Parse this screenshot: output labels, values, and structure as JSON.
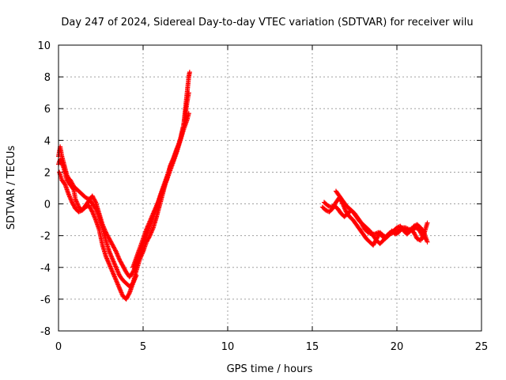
{
  "chart_data": {
    "type": "scatter",
    "title": "Day 247 of 2024, Sidereal Day-to-day VTEC variation (SDTVAR) for receiver wilu",
    "xlabel": "GPS time / hours",
    "ylabel": "SDTVAR / TECUs",
    "xlim": [
      0,
      25
    ],
    "ylim": [
      -8,
      10
    ],
    "xticks": [
      0,
      5,
      10,
      15,
      20,
      25
    ],
    "yticks": [
      -8,
      -6,
      -4,
      -2,
      0,
      2,
      4,
      6,
      8,
      10
    ],
    "grid": true,
    "marker": "+",
    "series": [
      {
        "name": "SDTVAR",
        "color": "#ff0000",
        "segments": [
          [
            [
              0.0,
              3.0
            ],
            [
              0.1,
              3.6
            ],
            [
              0.2,
              3.0
            ],
            [
              0.3,
              2.6
            ],
            [
              0.4,
              2.2
            ],
            [
              0.5,
              1.8
            ],
            [
              0.6,
              1.6
            ],
            [
              0.7,
              1.5
            ],
            [
              0.8,
              1.3
            ],
            [
              0.9,
              1.1
            ],
            [
              1.0,
              1.0
            ],
            [
              1.2,
              0.8
            ],
            [
              1.4,
              0.6
            ],
            [
              1.6,
              0.4
            ],
            [
              1.8,
              0.3
            ],
            [
              2.0,
              0.0
            ],
            [
              2.2,
              -0.3
            ],
            [
              2.4,
              -0.8
            ],
            [
              2.6,
              -1.5
            ],
            [
              2.8,
              -2.3
            ],
            [
              3.0,
              -3.0
            ],
            [
              3.2,
              -3.5
            ],
            [
              3.4,
              -4.0
            ],
            [
              3.6,
              -4.5
            ],
            [
              3.8,
              -4.8
            ],
            [
              4.0,
              -5.0
            ],
            [
              4.2,
              -5.2
            ],
            [
              4.4,
              -5.0
            ],
            [
              4.6,
              -4.5
            ]
          ],
          [
            [
              0.0,
              2.5
            ],
            [
              0.1,
              2.8
            ],
            [
              0.3,
              2.3
            ],
            [
              0.5,
              1.5
            ],
            [
              0.7,
              1.2
            ],
            [
              0.9,
              0.9
            ],
            [
              1.0,
              0.3
            ],
            [
              1.2,
              -0.2
            ],
            [
              1.4,
              -0.4
            ],
            [
              1.6,
              -0.2
            ],
            [
              1.8,
              -0.1
            ],
            [
              2.0,
              -0.5
            ],
            [
              2.2,
              -1.0
            ],
            [
              2.4,
              -1.6
            ],
            [
              2.6,
              -2.6
            ],
            [
              2.8,
              -3.3
            ],
            [
              3.0,
              -3.8
            ],
            [
              3.2,
              -4.3
            ],
            [
              3.4,
              -4.8
            ],
            [
              3.6,
              -5.3
            ],
            [
              3.8,
              -5.8
            ],
            [
              4.0,
              -6.0
            ],
            [
              4.2,
              -5.6
            ],
            [
              4.4,
              -5.0
            ],
            [
              4.6,
              -4.2
            ],
            [
              4.8,
              -3.5
            ],
            [
              5.0,
              -3.0
            ],
            [
              5.2,
              -2.4
            ],
            [
              5.4,
              -2.0
            ],
            [
              5.6,
              -1.5
            ],
            [
              5.8,
              -0.8
            ],
            [
              6.0,
              0.0
            ],
            [
              6.2,
              0.8
            ],
            [
              6.4,
              1.6
            ],
            [
              6.6,
              2.4
            ],
            [
              6.8,
              2.9
            ],
            [
              7.0,
              3.5
            ],
            [
              7.2,
              4.0
            ],
            [
              7.4,
              4.7
            ],
            [
              7.6,
              5.3
            ],
            [
              7.7,
              5.7
            ]
          ],
          [
            [
              0.05,
              2.0
            ],
            [
              0.2,
              1.5
            ],
            [
              0.4,
              1.2
            ],
            [
              0.6,
              0.6
            ],
            [
              0.8,
              0.1
            ],
            [
              1.0,
              -0.3
            ],
            [
              1.2,
              -0.5
            ],
            [
              1.4,
              -0.4
            ],
            [
              1.6,
              -0.1
            ],
            [
              1.8,
              0.2
            ],
            [
              2.0,
              0.5
            ],
            [
              2.2,
              0.1
            ],
            [
              2.4,
              -0.6
            ],
            [
              2.6,
              -1.3
            ],
            [
              2.8,
              -1.8
            ],
            [
              3.0,
              -2.2
            ],
            [
              3.2,
              -2.6
            ],
            [
              3.4,
              -3.0
            ],
            [
              3.6,
              -3.5
            ],
            [
              3.8,
              -3.9
            ],
            [
              4.0,
              -4.3
            ],
            [
              4.2,
              -4.6
            ],
            [
              4.4,
              -4.3
            ],
            [
              4.6,
              -3.8
            ],
            [
              4.8,
              -3.2
            ],
            [
              5.0,
              -2.5
            ],
            [
              5.2,
              -2.0
            ],
            [
              5.4,
              -1.4
            ],
            [
              5.6,
              -0.8
            ],
            [
              5.8,
              -0.2
            ],
            [
              6.0,
              0.5
            ],
            [
              6.2,
              1.1
            ],
            [
              6.4,
              1.7
            ],
            [
              6.6,
              2.3
            ],
            [
              6.8,
              2.8
            ],
            [
              7.0,
              3.4
            ],
            [
              7.2,
              4.1
            ],
            [
              7.4,
              5.0
            ],
            [
              7.5,
              5.6
            ],
            [
              7.6,
              6.4
            ],
            [
              7.7,
              7.0
            ]
          ],
          [
            [
              4.4,
              -4.0
            ],
            [
              4.6,
              -3.4
            ],
            [
              4.8,
              -2.8
            ],
            [
              5.0,
              -2.2
            ],
            [
              5.2,
              -1.6
            ],
            [
              5.4,
              -1.1
            ],
            [
              5.6,
              -0.6
            ],
            [
              5.8,
              -0.1
            ],
            [
              6.0,
              0.4
            ],
            [
              6.2,
              1.0
            ],
            [
              6.4,
              1.5
            ],
            [
              6.6,
              2.1
            ],
            [
              6.8,
              2.7
            ],
            [
              7.0,
              3.3
            ],
            [
              7.2,
              4.0
            ],
            [
              7.4,
              5.0
            ],
            [
              7.5,
              6.0
            ],
            [
              7.6,
              7.0
            ],
            [
              7.7,
              8.0
            ],
            [
              7.75,
              8.3
            ]
          ],
          [
            [
              15.6,
              -0.2
            ],
            [
              15.8,
              -0.4
            ],
            [
              16.0,
              -0.5
            ],
            [
              16.2,
              -0.3
            ],
            [
              16.4,
              0.1
            ],
            [
              16.6,
              0.4
            ],
            [
              16.8,
              0.0
            ],
            [
              17.0,
              -0.5
            ],
            [
              17.2,
              -0.8
            ],
            [
              17.4,
              -1.0
            ],
            [
              17.6,
              -1.3
            ],
            [
              17.8,
              -1.6
            ],
            [
              18.0,
              -1.9
            ],
            [
              18.2,
              -2.2
            ],
            [
              18.4,
              -2.4
            ],
            [
              18.6,
              -2.6
            ],
            [
              18.8,
              -2.2
            ],
            [
              19.0,
              -1.8
            ],
            [
              19.2,
              -2.0
            ],
            [
              19.4,
              -2.1
            ],
            [
              19.6,
              -1.9
            ],
            [
              19.8,
              -1.8
            ],
            [
              20.0,
              -1.8
            ],
            [
              20.2,
              -1.6
            ],
            [
              20.4,
              -1.6
            ],
            [
              20.6,
              -1.7
            ],
            [
              20.8,
              -1.6
            ],
            [
              21.0,
              -1.8
            ],
            [
              21.2,
              -2.2
            ],
            [
              21.4,
              -2.3
            ],
            [
              21.6,
              -1.9
            ],
            [
              21.8,
              -1.2
            ]
          ],
          [
            [
              15.7,
              0.1
            ],
            [
              15.9,
              -0.1
            ],
            [
              16.1,
              -0.2
            ],
            [
              16.3,
              -0.1
            ],
            [
              16.5,
              -0.3
            ],
            [
              16.7,
              -0.6
            ],
            [
              16.9,
              -0.8
            ],
            [
              17.1,
              -0.6
            ],
            [
              17.3,
              -0.4
            ],
            [
              17.5,
              -0.6
            ],
            [
              17.7,
              -0.9
            ],
            [
              17.9,
              -1.2
            ],
            [
              18.1,
              -1.6
            ],
            [
              18.3,
              -1.8
            ],
            [
              18.5,
              -1.9
            ],
            [
              18.7,
              -1.9
            ],
            [
              18.9,
              -1.8
            ],
            [
              19.1,
              -2.0
            ],
            [
              19.3,
              -2.2
            ],
            [
              19.5,
              -2.0
            ],
            [
              19.7,
              -1.7
            ],
            [
              19.9,
              -1.9
            ],
            [
              20.1,
              -1.8
            ],
            [
              20.3,
              -1.5
            ],
            [
              20.5,
              -1.5
            ],
            [
              20.7,
              -1.6
            ],
            [
              20.9,
              -1.7
            ],
            [
              21.1,
              -1.5
            ],
            [
              21.3,
              -1.6
            ],
            [
              21.5,
              -2.0
            ],
            [
              21.7,
              -2.2
            ]
          ],
          [
            [
              16.4,
              0.8
            ],
            [
              16.6,
              0.5
            ],
            [
              16.8,
              0.2
            ],
            [
              17.0,
              -0.1
            ],
            [
              17.2,
              -0.3
            ],
            [
              17.4,
              -0.5
            ],
            [
              17.6,
              -0.8
            ],
            [
              17.8,
              -1.1
            ],
            [
              18.0,
              -1.3
            ],
            [
              18.2,
              -1.5
            ],
            [
              18.4,
              -1.7
            ],
            [
              18.6,
              -2.0
            ],
            [
              18.8,
              -2.3
            ],
            [
              19.0,
              -2.5
            ],
            [
              19.2,
              -2.3
            ],
            [
              19.4,
              -2.0
            ],
            [
              19.6,
              -1.8
            ],
            [
              19.8,
              -1.7
            ],
            [
              20.0,
              -1.5
            ],
            [
              20.2,
              -1.4
            ],
            [
              20.4,
              -1.7
            ],
            [
              20.6,
              -1.9
            ],
            [
              20.8,
              -1.7
            ],
            [
              21.0,
              -1.4
            ],
            [
              21.2,
              -1.3
            ],
            [
              21.4,
              -1.5
            ],
            [
              21.6,
              -1.8
            ],
            [
              21.8,
              -2.4
            ]
          ]
        ]
      }
    ]
  }
}
